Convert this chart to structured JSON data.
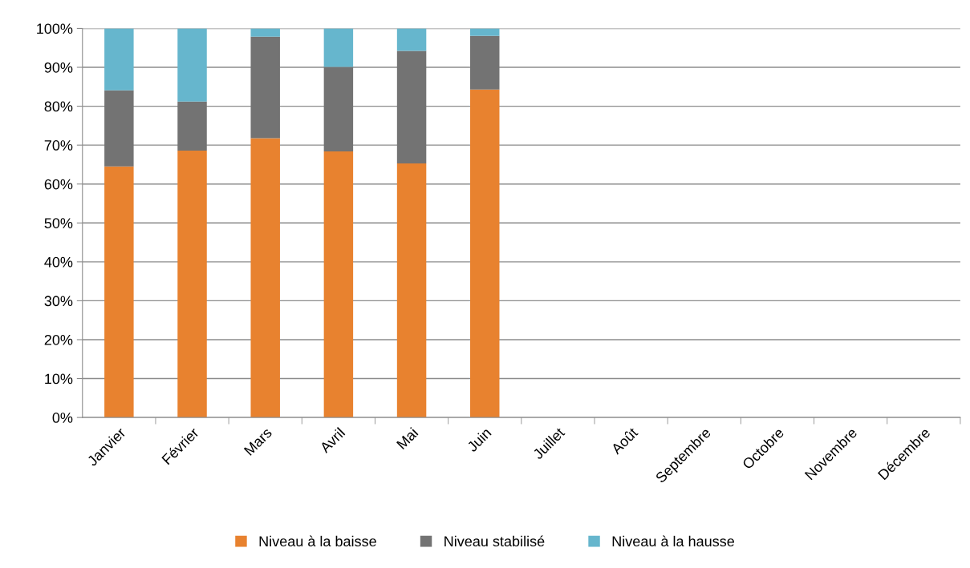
{
  "chart_data": {
    "type": "bar",
    "stacked": true,
    "categories": [
      "Janvier",
      "Février",
      "Mars",
      "Avril",
      "Mai",
      "Juin",
      "Juillet",
      "Août",
      "Septembre",
      "Octobre",
      "Novembre",
      "Décembre"
    ],
    "series": [
      {
        "name": "Niveau à la baisse",
        "color": "#e8822f",
        "values": [
          64.5,
          68.6,
          71.8,
          68.4,
          65.3,
          84.3,
          null,
          null,
          null,
          null,
          null,
          null
        ]
      },
      {
        "name": "Niveau stabilisé",
        "color": "#737373",
        "values": [
          19.6,
          12.6,
          26.1,
          21.7,
          28.9,
          13.8,
          null,
          null,
          null,
          null,
          null,
          null
        ]
      },
      {
        "name": "Niveau à la hausse",
        "color": "#66b6cd",
        "values": [
          15.9,
          18.8,
          2.1,
          9.9,
          5.8,
          1.9,
          null,
          null,
          null,
          null,
          null,
          null
        ]
      }
    ],
    "ylim": [
      0,
      100
    ],
    "yticks": [
      {
        "value": 0,
        "label": "0%"
      },
      {
        "value": 10,
        "label": "10%"
      },
      {
        "value": 20,
        "label": "20%"
      },
      {
        "value": 30,
        "label": "30%"
      },
      {
        "value": 40,
        "label": "40%"
      },
      {
        "value": 50,
        "label": "50%"
      },
      {
        "value": 60,
        "label": "60%"
      },
      {
        "value": 70,
        "label": "70%"
      },
      {
        "value": 80,
        "label": "80%"
      },
      {
        "value": 90,
        "label": "90%"
      },
      {
        "value": 100,
        "label": "100%"
      }
    ],
    "grid": "y",
    "legend": "bottom"
  }
}
